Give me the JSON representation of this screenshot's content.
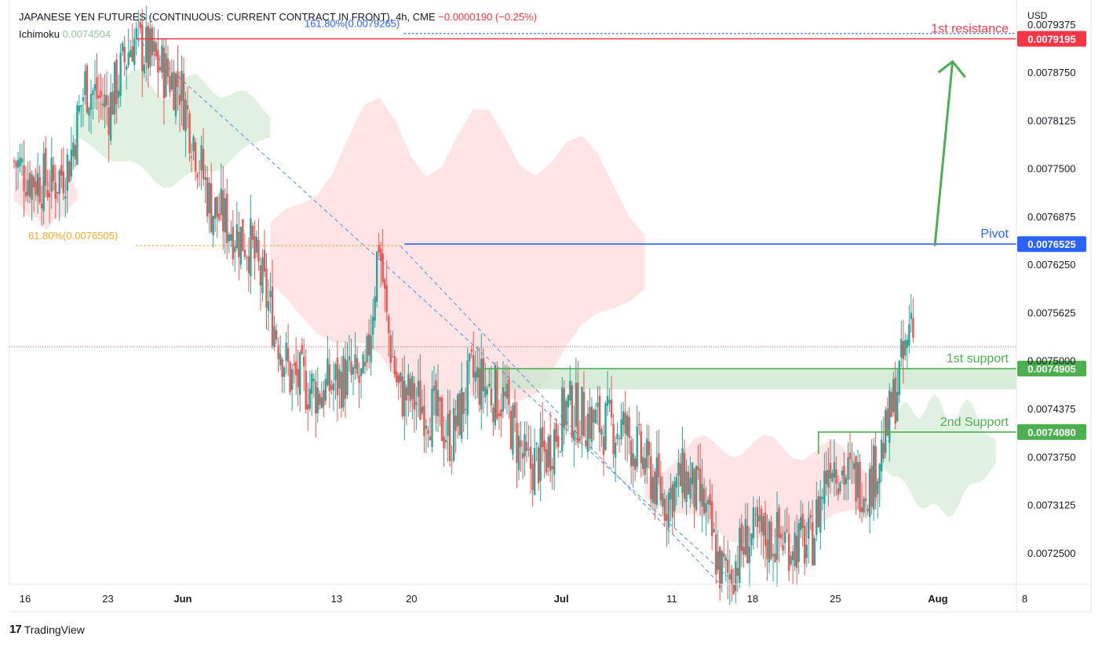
{
  "header": {
    "symbol": "JAPANESE YEN FUTURES (CONTINUOUS: CURRENT CONTRACT IN FRONT), 4h, CME",
    "change": "−0.0000190 (−0.25%)",
    "indicator_name": "Ichimoku",
    "indicator_value": "0.0074504"
  },
  "branding": "TradingView",
  "colors": {
    "up": "#26a69a",
    "down": "#ef5350",
    "resistance": "#f23645",
    "pivot": "#2962ff",
    "support": "#4caf50",
    "fib_upper": "#2962ff",
    "fib_lower": "#f9a825",
    "cloud_bull": "#c8e6c9",
    "cloud_bear": "#ffcdd2",
    "grid_text": "#131722"
  },
  "chart_data": {
    "type": "candlestick",
    "title": "JAPANESE YEN FUTURES (CONTINUOUS: CURRENT CONTRACT IN FRONT), 4h, CME",
    "currency": "USD",
    "y_range": [
      0.00721,
      0.00797
    ],
    "y_ticks": [
      "0.0079375",
      "0.0078750",
      "0.0078125",
      "0.0077500",
      "0.0076875",
      "0.0076250",
      "0.0075625",
      "0.0075000",
      "0.0074375",
      "0.0073750",
      "0.0073125",
      "0.0072500"
    ],
    "x_ticks": [
      {
        "label": "16",
        "bar": 0
      },
      {
        "label": "23",
        "bar": 42
      },
      {
        "label": "Jun",
        "bar": 80
      },
      {
        "label": "13",
        "bar": 158
      },
      {
        "label": "20",
        "bar": 196
      },
      {
        "label": "Jul",
        "bar": 272
      },
      {
        "label": "11",
        "bar": 328
      },
      {
        "label": "18",
        "bar": 369
      },
      {
        "label": "25",
        "bar": 411
      },
      {
        "label": "Aug",
        "bar": 463
      },
      {
        "label": "8",
        "bar": 507
      }
    ],
    "bar_count": 510,
    "price_keypoints": [
      [
        0,
        0.00776
      ],
      [
        8,
        0.00774
      ],
      [
        20,
        0.00773
      ],
      [
        28,
        0.00776
      ],
      [
        36,
        0.00786
      ],
      [
        48,
        0.00783
      ],
      [
        60,
        0.00792
      ],
      [
        75,
        0.00788
      ],
      [
        84,
        0.00786
      ],
      [
        100,
        0.0077
      ],
      [
        120,
        0.00765
      ],
      [
        140,
        0.00748
      ],
      [
        155,
        0.00746
      ],
      [
        168,
        0.00748
      ],
      [
        178,
        0.00747
      ],
      [
        185,
        0.00766
      ],
      [
        189,
        0.00755
      ],
      [
        195,
        0.00746
      ],
      [
        210,
        0.00744
      ],
      [
        222,
        0.0074
      ],
      [
        232,
        0.00748
      ],
      [
        248,
        0.00745
      ],
      [
        260,
        0.00736
      ],
      [
        270,
        0.00738
      ],
      [
        280,
        0.00744
      ],
      [
        295,
        0.00742
      ],
      [
        310,
        0.00741
      ],
      [
        330,
        0.00732
      ],
      [
        340,
        0.00735
      ],
      [
        350,
        0.00731
      ],
      [
        358,
        0.00723
      ],
      [
        362,
        0.00722
      ],
      [
        372,
        0.00727
      ],
      [
        388,
        0.00727
      ],
      [
        404,
        0.00726
      ],
      [
        414,
        0.00738
      ],
      [
        422,
        0.00735
      ],
      [
        434,
        0.00734
      ],
      [
        442,
        0.0074
      ],
      [
        448,
        0.00747
      ],
      [
        453,
        0.00752
      ],
      [
        455,
        0.00757
      ],
      [
        456,
        0.00753
      ]
    ],
    "cloud": [
      {
        "from": 0,
        "to": 32,
        "top": 0.00775,
        "bottom": 0.00768,
        "sentiment": "bearish"
      },
      {
        "from": 30,
        "to": 130,
        "top": 0.00787,
        "bottom": 0.00774,
        "sentiment": "bullish"
      },
      {
        "from": 130,
        "to": 320,
        "top": 0.00782,
        "bottom": 0.00745,
        "sentiment": "bearish"
      },
      {
        "from": 320,
        "to": 440,
        "top": 0.0074,
        "bottom": 0.00727,
        "sentiment": "bearish"
      },
      {
        "from": 440,
        "to": 498,
        "top": 0.00745,
        "bottom": 0.00731,
        "sentiment": "bullish"
      }
    ],
    "fib_levels": [
      {
        "label": "161.80%(0.0079265)",
        "price": 0.0079265,
        "from_bar": 198,
        "to_bar": 505
      },
      {
        "label": "61.80%(0.0076505)",
        "price": 0.0076505,
        "from_bar": 62,
        "to_bar": 196
      }
    ],
    "levels": [
      {
        "name": "1st resistance",
        "price": 0.0079195,
        "price_label": "0.0079195",
        "from_bar": 62,
        "to_bar": 505
      },
      {
        "name": "Pivot",
        "price": 0.0076525,
        "price_label": "0.0076525",
        "from_bar": 198,
        "to_bar": 505
      },
      {
        "name": "1st support",
        "price": 0.0074905,
        "price_label": "0.0074905",
        "from_bar": 236,
        "to_bar": 505
      },
      {
        "name": "2nd Support",
        "price": 0.007408,
        "price_label": "0.0074080",
        "from_bar": 408,
        "to_bar": 505
      }
    ],
    "support_zone": {
      "from_bar": 236,
      "to_bar": 505,
      "top": 0.0074905,
      "bottom": 0.0074635
    },
    "trendlines": [
      {
        "from": [
          62,
          0.00792
        ],
        "to": [
          362,
          0.00722
        ]
      },
      {
        "from": [
          196,
          0.00765
        ],
        "to": [
          358,
          0.00721
        ]
      }
    ],
    "arrow": {
      "from": [
        467,
        0.00765
      ],
      "to": [
        476,
        0.00789
      ]
    },
    "last_price": 0.007519
  }
}
